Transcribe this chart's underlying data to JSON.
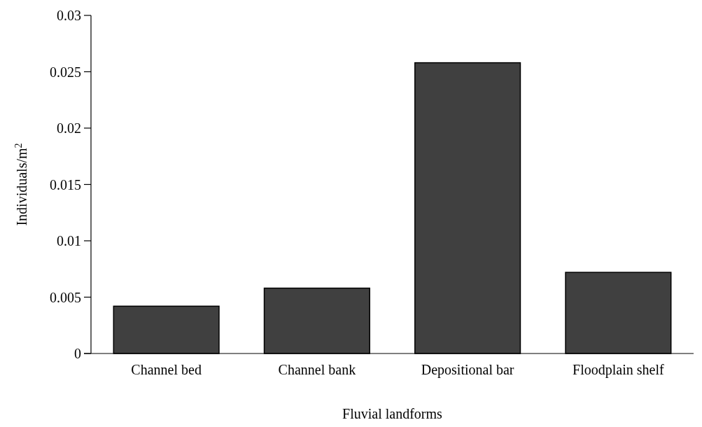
{
  "chart_data": {
    "type": "bar",
    "xlabel": "Fluvial landforms",
    "ylabel": "Individuals/m$^{2}$",
    "categories": [
      "Channel bed",
      "Channel bank",
      "Depositional bar",
      "Floodplain shelf"
    ],
    "values": [
      0.0042,
      0.0058,
      0.0258,
      0.0072
    ],
    "color": "#404040",
    "ylim": [
      0,
      0.03
    ],
    "yticks": [
      0,
      0.005,
      0.01,
      0.015,
      0.02,
      0.025,
      0.03
    ],
    "grid": false
  }
}
